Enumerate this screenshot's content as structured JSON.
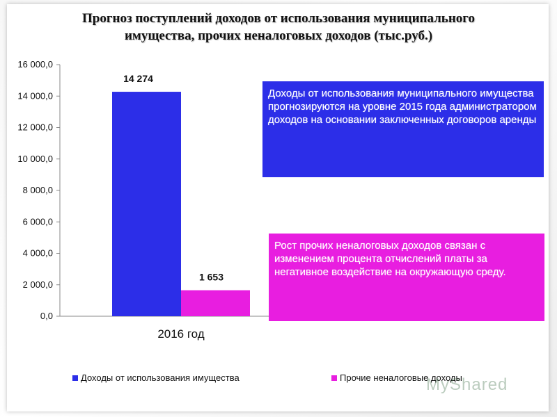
{
  "title": {
    "line1": "Прогноз поступлений доходов от использования муниципального",
    "line2": "имущества,  прочих неналоговых доходов (тыс.руб.)"
  },
  "callouts": {
    "blue_text": "Доходы от использования муниципального имущества  прогнозируются на уровне 2015 года администратором доходов на основании заключенных договоров аренды",
    "pink_text": "Рост прочих неналоговых доходов связан с изменением процента отчислений  платы за негативное воздействие на окружающую среду."
  },
  "watermark": "MyShared",
  "colors": {
    "series1": "#2c2ee8",
    "series2": "#e81ee0"
  },
  "chart_data": {
    "type": "bar",
    "categories": [
      "2016 год"
    ],
    "series": [
      {
        "name": "Доходы от использования имущества",
        "values": [
          14274
        ],
        "label": "14 274"
      },
      {
        "name": "Прочие неналоговые доходы",
        "values": [
          1653
        ],
        "label": "1 653"
      }
    ],
    "ylim": [
      0,
      16000
    ],
    "yticks": [
      0,
      2000,
      4000,
      6000,
      8000,
      10000,
      12000,
      14000,
      16000
    ],
    "ytick_labels": [
      "0,0",
      "2 000,0",
      "4 000,0",
      "6 000,0",
      "8 000,0",
      "10 000,0",
      "12 000,0",
      "14 000,0",
      "16 000,0"
    ],
    "legend_position": "bottom",
    "grid": false
  }
}
